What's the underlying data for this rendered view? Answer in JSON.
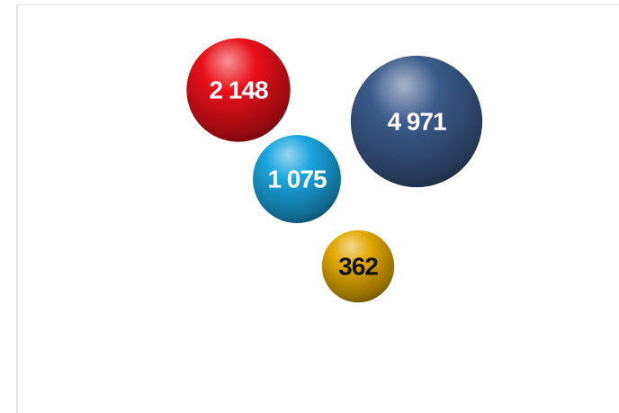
{
  "chart_data": {
    "type": "bubble",
    "values": [
      2148,
      4971,
      1075,
      362
    ],
    "value_labels": [
      "2 148",
      "4 971",
      "1 075",
      "362"
    ],
    "colors": [
      "#e8101a",
      "#3b5b8a",
      "#1aa5de",
      "#e2a900"
    ],
    "label_colors": [
      "#ffffff",
      "#ffffff",
      "#ffffff",
      "#111111"
    ]
  }
}
